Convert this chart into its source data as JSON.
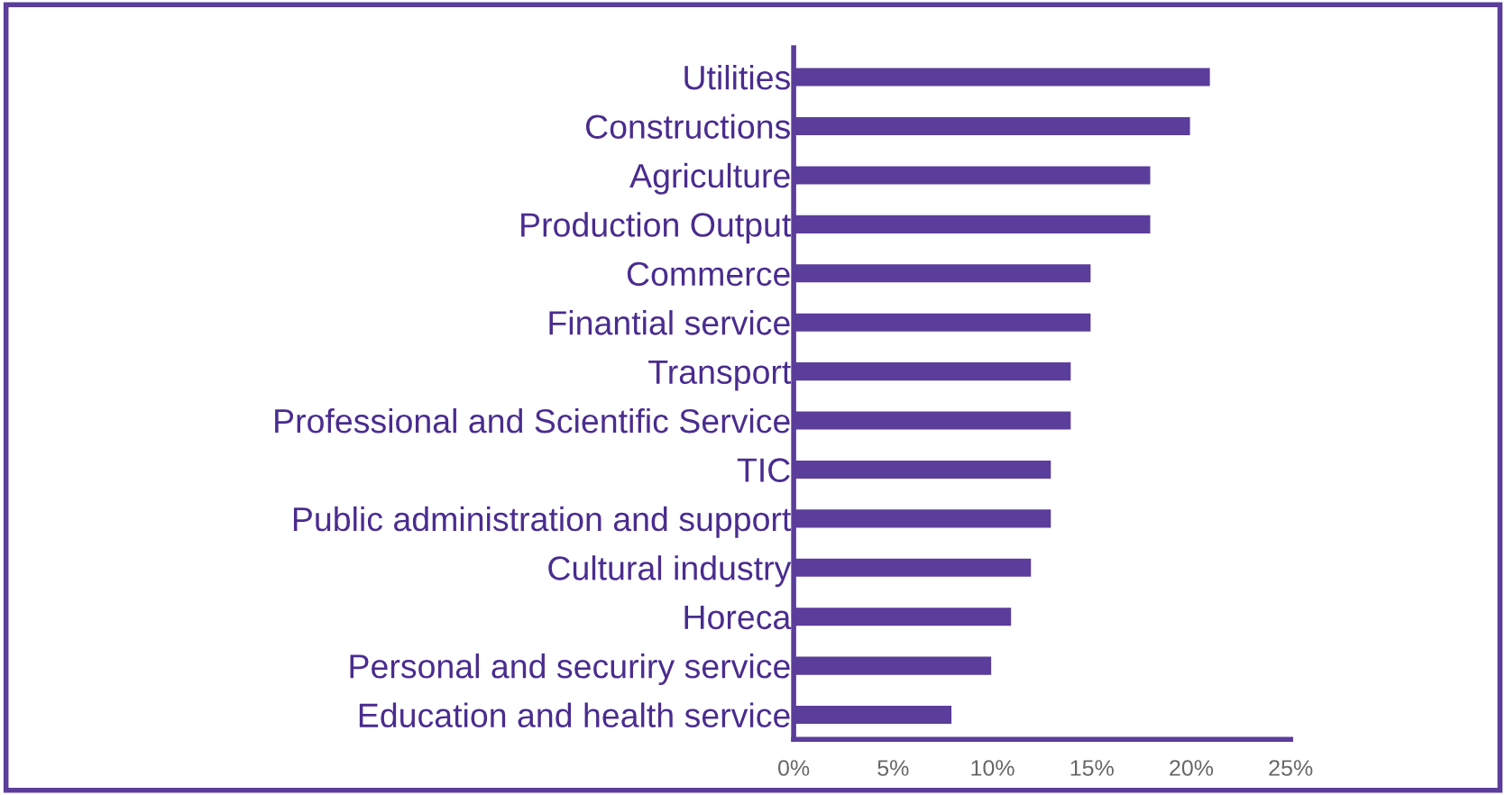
{
  "chart_data": {
    "type": "bar",
    "orientation": "horizontal",
    "categories": [
      "Utilities",
      "Constructions",
      "Agriculture",
      "Production Output",
      "Commerce",
      "Finantial service",
      "Transport",
      "Professional and Scientific Service",
      "TIC",
      "Public administration and support",
      "Cultural industry",
      "Horeca",
      "Personal and securiry service",
      "Education and health service"
    ],
    "values": [
      21,
      20,
      18,
      18,
      15,
      15,
      14,
      14,
      13,
      13,
      12,
      11,
      10,
      8
    ],
    "color": "#5b3d9b",
    "xlim": [
      0,
      25
    ],
    "xticks": [
      {
        "value": 0,
        "label": "0%"
      },
      {
        "value": 5,
        "label": "5%"
      },
      {
        "value": 10,
        "label": "10%"
      },
      {
        "value": 15,
        "label": "15%"
      },
      {
        "value": 20,
        "label": "20%"
      },
      {
        "value": 25,
        "label": "25%"
      }
    ],
    "grid": false,
    "legend": false
  }
}
